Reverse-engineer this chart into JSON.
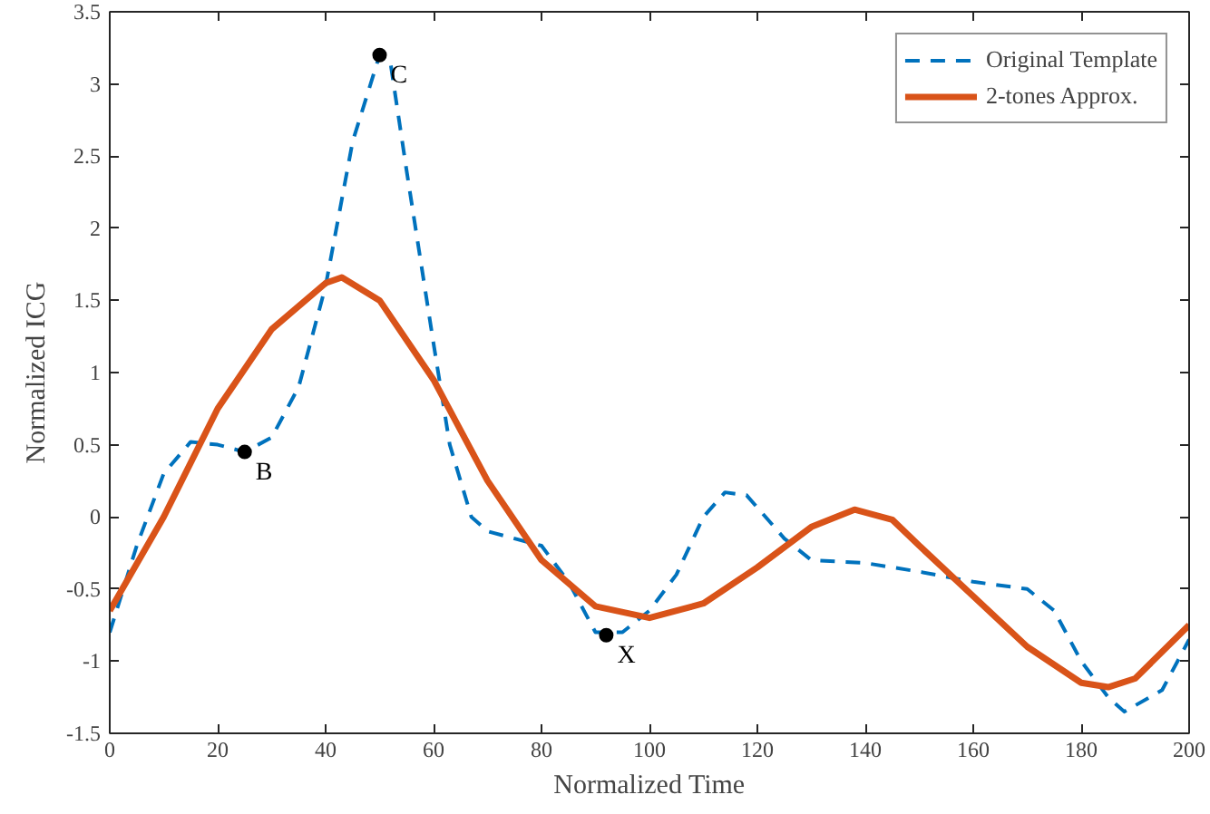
{
  "chart_data": {
    "type": "line",
    "xlabel": "Normalized Time",
    "ylabel": "Normalized ICG",
    "xlim": [
      0,
      200
    ],
    "ylim": [
      -1.5,
      3.5
    ],
    "xticks": [
      0,
      20,
      40,
      60,
      80,
      100,
      120,
      140,
      160,
      180,
      200
    ],
    "yticks": [
      -1.5,
      -1,
      -0.5,
      0,
      0.5,
      1,
      1.5,
      2,
      2.5,
      3,
      3.5
    ],
    "grid": false,
    "legend": "top right",
    "series": [
      {
        "name": "Original Template",
        "color": "#0072bd",
        "line_style": "dashed",
        "x": [
          0,
          5,
          10,
          15,
          20,
          25,
          30,
          35,
          40,
          45,
          50,
          52,
          55,
          60,
          63,
          67,
          70,
          75,
          80,
          85,
          90,
          95,
          100,
          105,
          110,
          114,
          118,
          125,
          130,
          140,
          150,
          160,
          170,
          175,
          180,
          185,
          188,
          195,
          200
        ],
        "values": [
          -0.8,
          -0.2,
          0.3,
          0.52,
          0.5,
          0.45,
          0.55,
          0.9,
          1.6,
          2.6,
          3.2,
          3.15,
          2.4,
          1.2,
          0.5,
          0.0,
          -0.1,
          -0.15,
          -0.2,
          -0.45,
          -0.8,
          -0.8,
          -0.65,
          -0.4,
          0.0,
          0.17,
          0.15,
          -0.15,
          -0.3,
          -0.32,
          -0.38,
          -0.45,
          -0.5,
          -0.65,
          -1.0,
          -1.25,
          -1.35,
          -1.2,
          -0.85
        ]
      },
      {
        "name": "2-tones Approx.",
        "color": "#d95319",
        "line_style": "solid",
        "x": [
          0,
          10,
          20,
          30,
          40,
          43,
          50,
          60,
          70,
          80,
          90,
          100,
          110,
          120,
          130,
          138,
          145,
          150,
          160,
          170,
          180,
          185,
          190,
          200
        ],
        "values": [
          -0.65,
          0.0,
          0.75,
          1.3,
          1.62,
          1.66,
          1.5,
          0.95,
          0.25,
          -0.3,
          -0.62,
          -0.7,
          -0.6,
          -0.35,
          -0.07,
          0.05,
          -0.02,
          -0.2,
          -0.55,
          -0.9,
          -1.15,
          -1.18,
          -1.12,
          -0.75
        ]
      },
      {
        "type": "scatter",
        "marker": "circle",
        "color": "#000000",
        "x": [
          25,
          50,
          92
        ],
        "values": [
          0.45,
          3.2,
          -0.82
        ]
      }
    ],
    "annotations": [
      {
        "text": "B",
        "x": 25,
        "y": 0.45
      },
      {
        "text": "C",
        "x": 50,
        "y": 3.2
      },
      {
        "text": "X",
        "x": 92,
        "y": -0.82
      }
    ]
  }
}
